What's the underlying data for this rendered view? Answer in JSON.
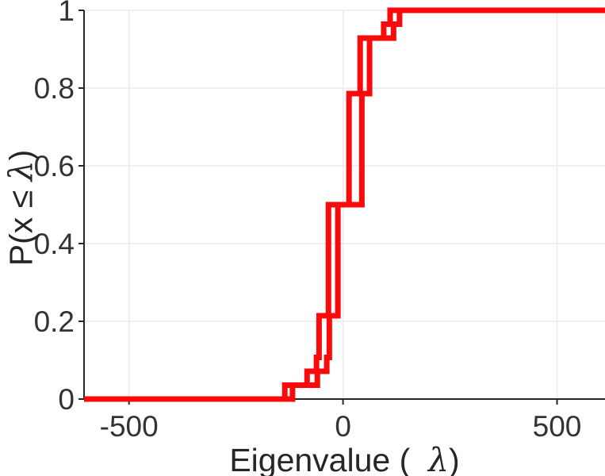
{
  "figure": {
    "background": "#ffffff",
    "axis_color": "#262626",
    "grid_color": "#ececec",
    "tick_label_color": "#333333",
    "line_color": "#fa0a0a",
    "line_width": 7
  },
  "labels": {
    "xlabel": {
      "prefix": "Eigenvalue (  ",
      "lambda": "λ",
      "suffix": ")"
    },
    "ylabel": {
      "prefix": "P(x ≤ ",
      "lambda": "λ",
      "suffix": ")"
    }
  },
  "chart_data": {
    "type": "line",
    "subtype": "step-ecdf",
    "title": "",
    "xlabel": "Eigenvalue ( λ)",
    "ylabel": "P(x ≤ λ)",
    "xlim": [
      -605,
      612
    ],
    "ylim": [
      0,
      1
    ],
    "grid": true,
    "legend": false,
    "xticks": [
      {
        "value": -500,
        "label": "-500"
      },
      {
        "value": 0,
        "label": "0"
      },
      {
        "value": 500,
        "label": "500"
      }
    ],
    "yticks": [
      {
        "value": 0,
        "label": "0"
      },
      {
        "value": 0.2,
        "label": "0.2"
      },
      {
        "value": 0.4,
        "label": "0.4"
      },
      {
        "value": 0.6,
        "label": "0.6"
      },
      {
        "value": 0.8,
        "label": "0.8"
      },
      {
        "value": 1,
        "label": "1"
      }
    ],
    "series": [
      {
        "name": "ecdf-curve-1",
        "color": "#fa0a0a",
        "steps": [
          [
            -136,
            0.0357
          ],
          [
            -84,
            0.0714
          ],
          [
            -62,
            0.1071
          ],
          [
            -56,
            0.2143
          ],
          [
            -34,
            0.5
          ],
          [
            14,
            0.7857
          ],
          [
            40,
            0.9286
          ],
          [
            95,
            0.9643
          ],
          [
            110,
            1.0
          ]
        ]
      },
      {
        "name": "ecdf-curve-2",
        "color": "#fa0a0a",
        "steps": [
          [
            -118,
            0.0357
          ],
          [
            -60,
            0.0714
          ],
          [
            -38,
            0.1071
          ],
          [
            -32,
            0.2143
          ],
          [
            -12,
            0.5
          ],
          [
            44,
            0.7857
          ],
          [
            62,
            0.9286
          ],
          [
            118,
            0.9643
          ],
          [
            132,
            1.0
          ]
        ]
      }
    ]
  }
}
